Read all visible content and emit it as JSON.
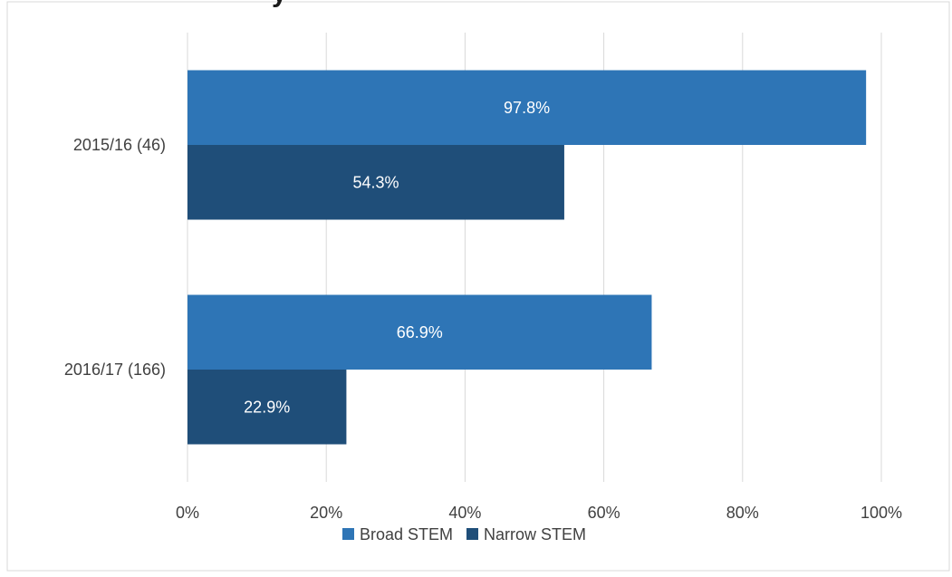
{
  "chart_data": {
    "type": "bar",
    "orientation": "horizontal",
    "title_fragment": "y",
    "categories": [
      "2015/16 (46)",
      "2016/17 (166)"
    ],
    "series": [
      {
        "name": "Broad STEM",
        "color": "#2e75b6",
        "values": [
          97.8,
          66.9
        ],
        "labels": [
          "97.8%",
          "66.9%"
        ]
      },
      {
        "name": "Narrow STEM",
        "color": "#1f4e79",
        "values": [
          54.3,
          22.9
        ],
        "labels": [
          "54.3%",
          "22.9%"
        ]
      }
    ],
    "xlim": [
      0,
      100
    ],
    "x_ticks": [
      "0%",
      "20%",
      "40%",
      "60%",
      "80%",
      "100%"
    ],
    "grid": true,
    "legend_position": "bottom"
  }
}
